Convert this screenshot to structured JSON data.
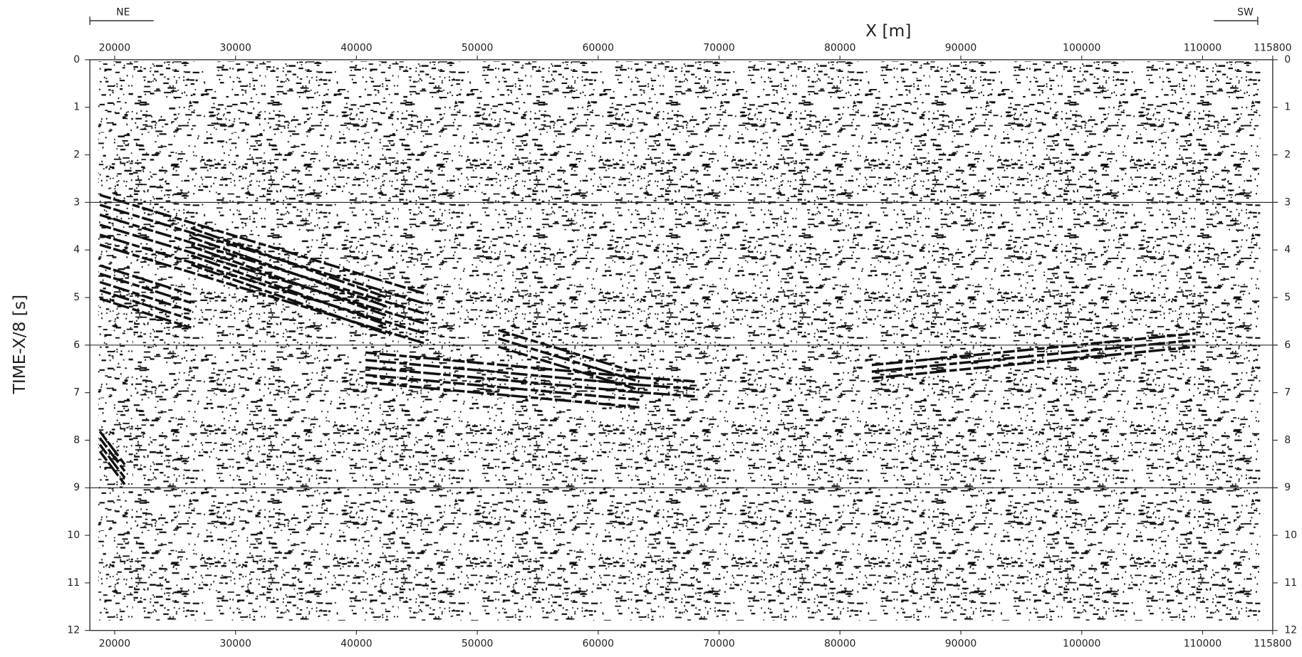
{
  "chart_data": {
    "type": "seismic",
    "xlabel": "X [m]",
    "ylabel": "TIME-X/8 [s]",
    "annotations": [
      "NE",
      "SW"
    ],
    "xlim": [
      17950,
      115800
    ],
    "xticks": [
      20000,
      30000,
      40000,
      50000,
      60000,
      70000,
      80000,
      90000,
      100000,
      110000,
      115800
    ],
    "ylim": [
      0,
      12
    ],
    "y_inverted": true,
    "yticks": [
      0,
      1,
      2,
      3,
      4,
      5,
      6,
      7,
      8,
      9,
      10,
      11,
      12
    ],
    "hlines": [
      3,
      6,
      9
    ]
  }
}
